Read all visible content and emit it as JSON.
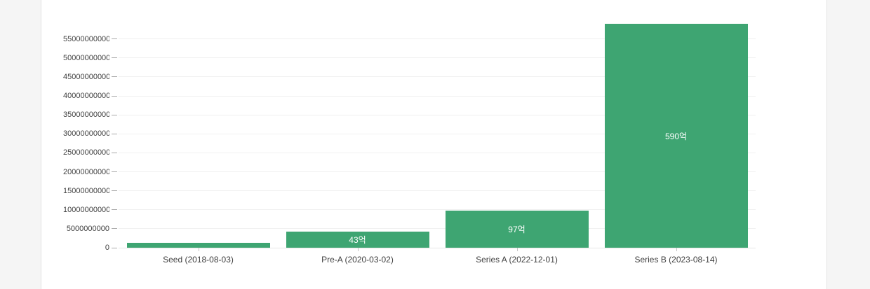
{
  "page": {
    "background_color": "#f5f5f5"
  },
  "card": {
    "background_color": "#ffffff",
    "border_color": "#e3e3e3"
  },
  "chart_data": {
    "type": "bar",
    "title": "",
    "xlabel": "",
    "ylabel": "",
    "categories": [
      "Seed (2018-08-03)",
      "Pre-A (2020-03-02)",
      "Series A (2022-12-01)",
      "Series B (2023-08-14)"
    ],
    "values": [
      1300000000,
      4300000000,
      9700000000,
      59000000000
    ],
    "bar_labels": [
      "",
      "43억",
      "97억",
      "590억"
    ],
    "y_ticks": [
      0,
      5000000000,
      10000000000,
      15000000000,
      20000000000,
      25000000000,
      30000000000,
      35000000000,
      40000000000,
      45000000000,
      50000000000,
      55000000000
    ],
    "ylim": [
      0,
      59000000000
    ],
    "grid": true,
    "legend": false,
    "bar_color": "#3ea572",
    "bar_value_label_color": "#ffffff",
    "grid_color": "#f0f0f0",
    "baseline_color": "#e6e6e6",
    "y_tick_color": "#aaaaaa",
    "x_tick_color": "#c4c4c4",
    "axis_label_color": "#404040"
  }
}
